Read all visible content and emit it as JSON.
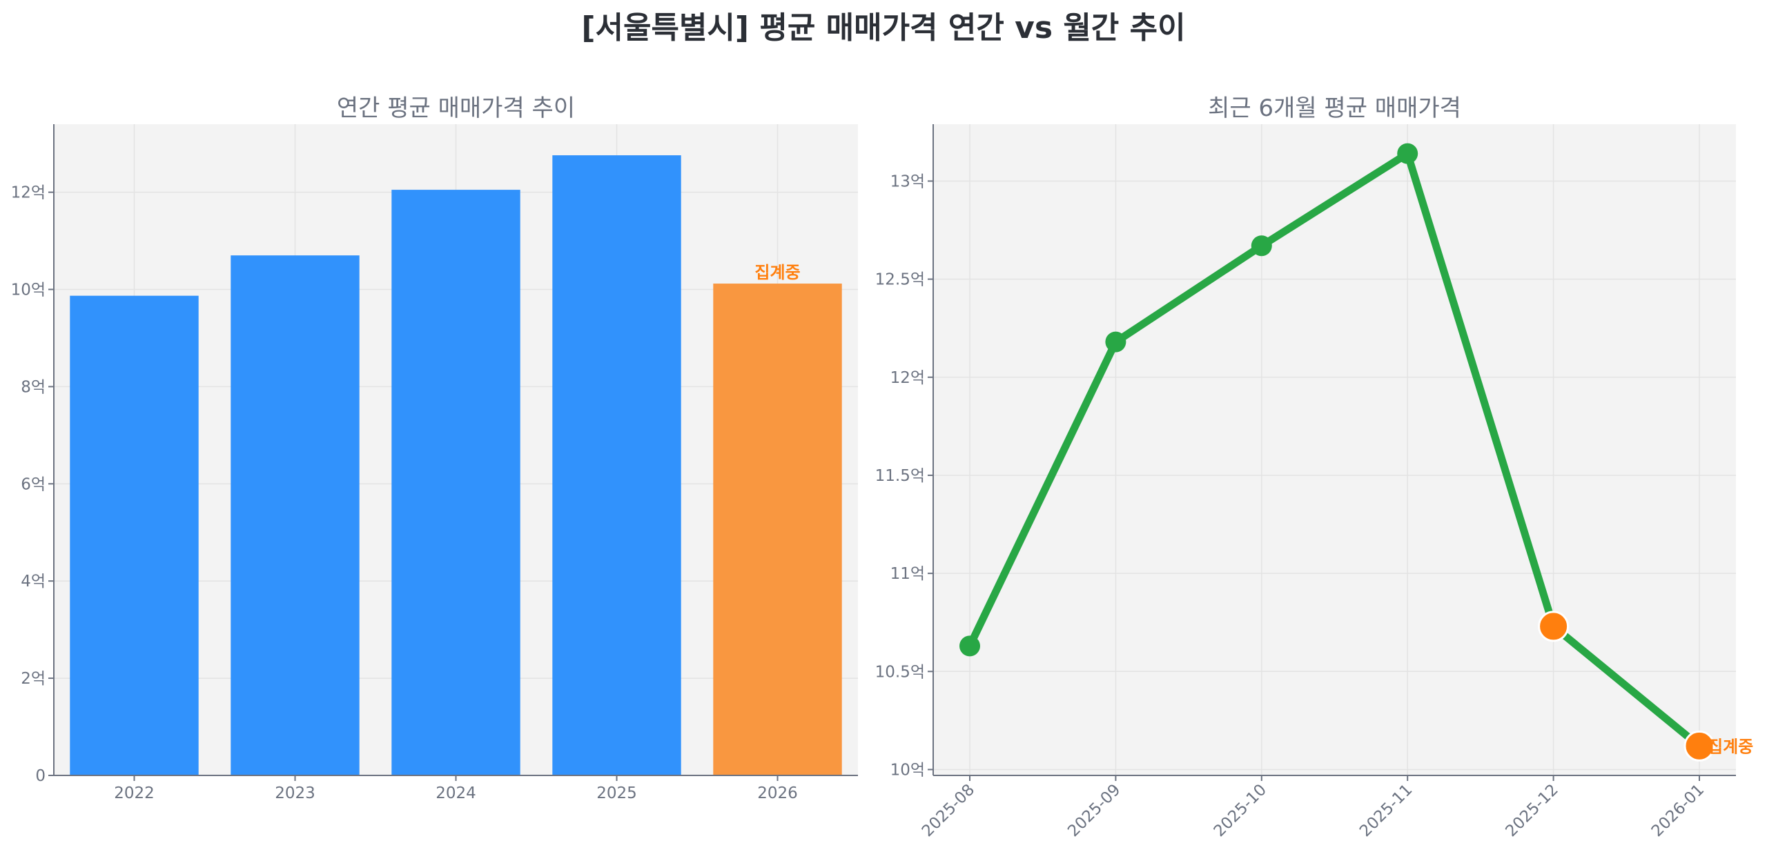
{
  "title": "[서울특별시] 평균 매매가격 연간 vs 월간 추이",
  "chart_data": [
    {
      "type": "bar",
      "title": "연간 평균 매매가격 추이",
      "categories": [
        "2022",
        "2023",
        "2024",
        "2025",
        "2026"
      ],
      "values": [
        9.87,
        10.7,
        12.05,
        12.76,
        10.12
      ],
      "unit": "억",
      "ylim": [
        0,
        13.4
      ],
      "yticks": [
        0,
        2,
        4,
        6,
        8,
        10,
        12
      ],
      "ytick_labels": [
        "0",
        "2억",
        "4억",
        "6억",
        "8억",
        "10억",
        "12억"
      ],
      "grid": true,
      "colors": [
        "#3192fc",
        "#3192fc",
        "#3192fc",
        "#3192fc",
        "#f99740"
      ],
      "annotation": {
        "category": "2026",
        "text": "집계중",
        "color": "#ff7f0e"
      }
    },
    {
      "type": "line",
      "title": "최근 6개월 평균 매매가격",
      "x": [
        "2025-08",
        "2025-09",
        "2025-10",
        "2025-11",
        "2025-12",
        "2026-01"
      ],
      "values": [
        10.63,
        12.18,
        12.67,
        13.14,
        10.73,
        10.12
      ],
      "unit": "억",
      "ylim": [
        9.97,
        13.29
      ],
      "yticks": [
        10,
        10.5,
        11,
        11.5,
        12,
        12.5,
        13
      ],
      "ytick_labels": [
        "10억",
        "10.5억",
        "11억",
        "11.5억",
        "12억",
        "12.5억",
        "13억"
      ],
      "grid": true,
      "line_color": "#28a745",
      "highlight_points": [
        "2025-12",
        "2026-01"
      ],
      "highlight_color": "#ff7f0e",
      "annotation": {
        "x": "2026-01",
        "text": "집계중",
        "color": "#ff7f0e"
      }
    }
  ]
}
